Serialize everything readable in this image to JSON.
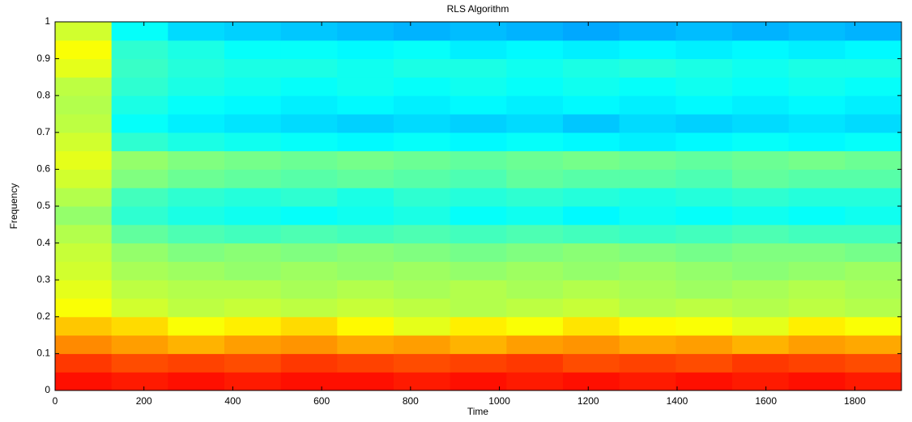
{
  "chart_data": {
    "type": "heatmap",
    "title": "RLS Algorithm",
    "x_label": "Time",
    "y_label": "Frequency",
    "colormap": "jet",
    "xbins": [
      0,
      127,
      254,
      381,
      508,
      635,
      762,
      889,
      1016,
      1143,
      1270,
      1397,
      1524,
      1651,
      1778,
      1905
    ],
    "ybins": [
      0,
      0.05,
      0.1,
      0.15,
      0.2,
      0.25,
      0.3,
      0.35,
      0.4,
      0.45,
      0.5,
      0.55,
      0.6,
      0.65,
      0.7,
      0.75,
      0.8,
      0.85,
      0.9,
      0.95,
      1
    ],
    "values": [
      [
        0.86,
        0.85,
        0.86,
        0.85,
        0.86,
        0.86,
        0.85,
        0.86,
        0.85,
        0.86,
        0.85,
        0.86,
        0.85,
        0.86,
        0.85
      ],
      [
        0.82,
        0.8,
        0.81,
        0.8,
        0.82,
        0.81,
        0.8,
        0.81,
        0.82,
        0.8,
        0.81,
        0.8,
        0.82,
        0.81,
        0.8
      ],
      [
        0.74,
        0.72,
        0.7,
        0.72,
        0.73,
        0.71,
        0.72,
        0.7,
        0.72,
        0.73,
        0.71,
        0.72,
        0.7,
        0.72,
        0.71
      ],
      [
        0.68,
        0.66,
        0.62,
        0.64,
        0.66,
        0.63,
        0.6,
        0.64,
        0.62,
        0.65,
        0.63,
        0.62,
        0.6,
        0.64,
        0.62
      ],
      [
        0.62,
        0.58,
        0.56,
        0.57,
        0.56,
        0.57,
        0.56,
        0.55,
        0.56,
        0.57,
        0.55,
        0.56,
        0.55,
        0.56,
        0.55
      ],
      [
        0.6,
        0.56,
        0.55,
        0.55,
        0.54,
        0.55,
        0.54,
        0.55,
        0.54,
        0.55,
        0.54,
        0.53,
        0.54,
        0.55,
        0.54
      ],
      [
        0.58,
        0.54,
        0.53,
        0.52,
        0.53,
        0.52,
        0.53,
        0.52,
        0.53,
        0.52,
        0.53,
        0.52,
        0.51,
        0.52,
        0.53
      ],
      [
        0.57,
        0.52,
        0.5,
        0.51,
        0.5,
        0.51,
        0.5,
        0.49,
        0.5,
        0.51,
        0.5,
        0.49,
        0.5,
        0.5,
        0.49
      ],
      [
        0.55,
        0.47,
        0.45,
        0.44,
        0.45,
        0.44,
        0.45,
        0.44,
        0.45,
        0.44,
        0.43,
        0.44,
        0.45,
        0.44,
        0.44
      ],
      [
        0.52,
        0.42,
        0.4,
        0.39,
        0.38,
        0.39,
        0.4,
        0.38,
        0.39,
        0.37,
        0.39,
        0.38,
        0.39,
        0.38,
        0.39
      ],
      [
        0.55,
        0.44,
        0.42,
        0.41,
        0.42,
        0.4,
        0.42,
        0.41,
        0.42,
        0.41,
        0.4,
        0.41,
        0.42,
        0.41,
        0.41
      ],
      [
        0.58,
        0.5,
        0.48,
        0.47,
        0.46,
        0.47,
        0.46,
        0.45,
        0.47,
        0.46,
        0.46,
        0.45,
        0.47,
        0.46,
        0.46
      ],
      [
        0.6,
        0.52,
        0.5,
        0.49,
        0.48,
        0.49,
        0.48,
        0.47,
        0.48,
        0.49,
        0.48,
        0.47,
        0.48,
        0.49,
        0.48
      ],
      [
        0.58,
        0.42,
        0.4,
        0.39,
        0.38,
        0.37,
        0.38,
        0.37,
        0.38,
        0.37,
        0.36,
        0.37,
        0.38,
        0.37,
        0.38
      ],
      [
        0.56,
        0.38,
        0.36,
        0.35,
        0.34,
        0.33,
        0.34,
        0.33,
        0.34,
        0.32,
        0.34,
        0.33,
        0.34,
        0.35,
        0.34
      ],
      [
        0.55,
        0.4,
        0.38,
        0.37,
        0.36,
        0.37,
        0.36,
        0.37,
        0.36,
        0.37,
        0.36,
        0.37,
        0.36,
        0.37,
        0.36
      ],
      [
        0.56,
        0.42,
        0.4,
        0.39,
        0.38,
        0.39,
        0.38,
        0.39,
        0.38,
        0.39,
        0.38,
        0.39,
        0.38,
        0.39,
        0.38
      ],
      [
        0.6,
        0.43,
        0.41,
        0.4,
        0.4,
        0.39,
        0.4,
        0.4,
        0.39,
        0.4,
        0.41,
        0.4,
        0.39,
        0.4,
        0.4
      ],
      [
        0.62,
        0.42,
        0.4,
        0.38,
        0.38,
        0.37,
        0.38,
        0.36,
        0.37,
        0.36,
        0.37,
        0.36,
        0.37,
        0.36,
        0.37
      ],
      [
        0.58,
        0.38,
        0.34,
        0.33,
        0.32,
        0.31,
        0.3,
        0.31,
        0.3,
        0.29,
        0.3,
        0.31,
        0.3,
        0.31,
        0.3
      ]
    ],
    "xlim": [
      0,
      1905
    ],
    "ylim": [
      0,
      1
    ],
    "xticks": [
      0,
      200,
      400,
      600,
      800,
      1000,
      1200,
      1400,
      1600,
      1800
    ],
    "yticks": [
      0,
      0.1,
      0.2,
      0.3,
      0.4,
      0.5,
      0.6,
      0.7,
      0.8,
      0.9,
      1
    ]
  }
}
